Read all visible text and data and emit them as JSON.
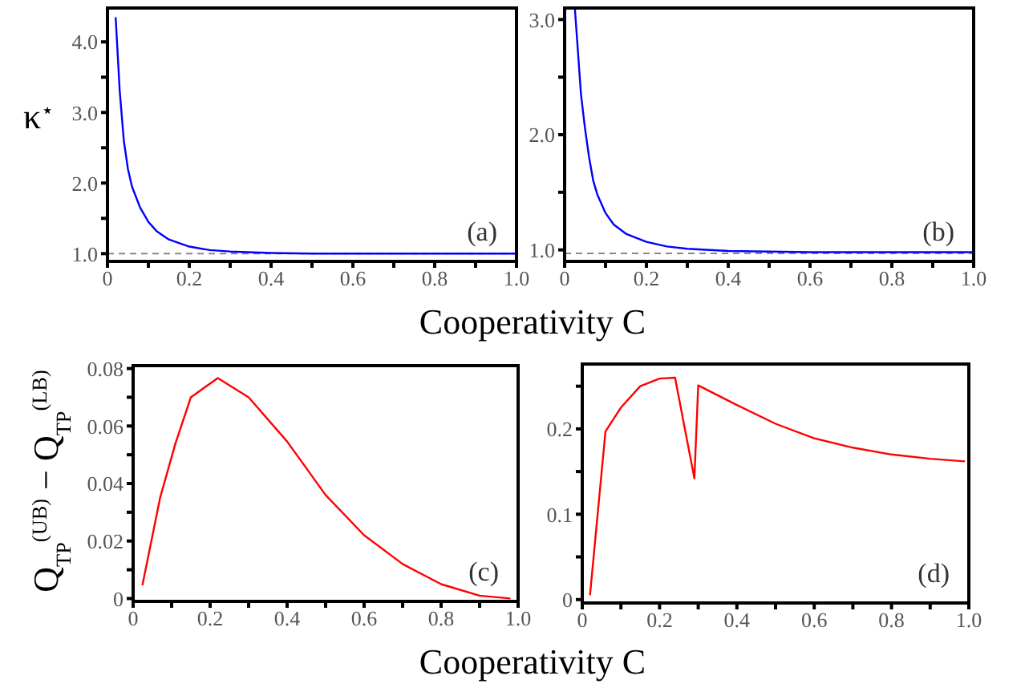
{
  "chart_data": [
    {
      "type": "line",
      "ylabel": "κ$^{⋆}$",
      "xlabel": "Cooperativity C",
      "annotations": [
        "(a)"
      ],
      "grid": false,
      "legend": false,
      "line_style": "solid",
      "marker": "none",
      "xlim": [
        0,
        1
      ],
      "xticks": [
        {
          "value": 0,
          "label": "0"
        },
        {
          "value": 0.1,
          "label": null
        },
        {
          "value": 0.2,
          "label": "0.2"
        },
        {
          "value": 0.3,
          "label": null
        },
        {
          "value": 0.4,
          "label": "0.4"
        },
        {
          "value": 0.5,
          "label": null
        },
        {
          "value": 0.6,
          "label": "0.6"
        },
        {
          "value": 0.7,
          "label": null
        },
        {
          "value": 0.8,
          "label": "0.8"
        },
        {
          "value": 0.9,
          "label": null
        },
        {
          "value": 1,
          "label": "1.0"
        }
      ],
      "ylim": [
        0.89,
        4.48
      ],
      "yticks": [
        {
          "value": 1,
          "label": "1.0"
        },
        {
          "value": 1.5,
          "label": null
        },
        {
          "value": 2,
          "label": "2.0"
        },
        {
          "value": 2.5,
          "label": null
        },
        {
          "value": 3,
          "label": "3.0"
        },
        {
          "value": 3.5,
          "label": null
        },
        {
          "value": 4,
          "label": "4.0"
        }
      ],
      "ref_lines": [
        {
          "axis": "y",
          "value": 1,
          "color": "#888888",
          "line_style": "dashed"
        }
      ],
      "series": [
        {
          "color": "#0000ff",
          "x": [
            0.02,
            0.03,
            0.04,
            0.05,
            0.06,
            0.08,
            0.1,
            0.12,
            0.15,
            0.2,
            0.25,
            0.3,
            0.4,
            0.5,
            0.7,
            1.0
          ],
          "values": [
            4.35,
            3.3,
            2.6,
            2.2,
            1.95,
            1.65,
            1.45,
            1.32,
            1.2,
            1.1,
            1.05,
            1.03,
            1.01,
            1.0,
            1.0,
            1.0
          ]
        }
      ]
    },
    {
      "type": "line",
      "annotations": [
        "(b)"
      ],
      "grid": false,
      "legend": false,
      "line_style": "solid",
      "marker": "none",
      "xlim": [
        0,
        1
      ],
      "xticks": [
        {
          "value": 0,
          "label": "0"
        },
        {
          "value": 0.1,
          "label": null
        },
        {
          "value": 0.2,
          "label": "0.2"
        },
        {
          "value": 0.3,
          "label": null
        },
        {
          "value": 0.4,
          "label": "0.4"
        },
        {
          "value": 0.5,
          "label": null
        },
        {
          "value": 0.6,
          "label": "0.6"
        },
        {
          "value": 0.7,
          "label": null
        },
        {
          "value": 0.8,
          "label": "0.8"
        },
        {
          "value": 0.9,
          "label": null
        },
        {
          "value": 1,
          "label": "1.0"
        }
      ],
      "ylim": [
        0.9,
        3.1
      ],
      "yticks": [
        {
          "value": 1,
          "label": "1.0"
        },
        {
          "value": 1.5,
          "label": null
        },
        {
          "value": 2,
          "label": "2.0"
        },
        {
          "value": 2.5,
          "label": null
        },
        {
          "value": 3,
          "label": "3.0"
        }
      ],
      "ref_lines": [
        {
          "axis": "y",
          "value": 0.97,
          "color": "#888888",
          "line_style": "dashed"
        }
      ],
      "series": [
        {
          "color": "#0000ff",
          "x": [
            0.025,
            0.03,
            0.04,
            0.05,
            0.06,
            0.07,
            0.08,
            0.1,
            0.12,
            0.15,
            0.2,
            0.25,
            0.3,
            0.4,
            0.6,
            1.0
          ],
          "values": [
            3.1,
            2.85,
            2.35,
            2.05,
            1.8,
            1.6,
            1.48,
            1.32,
            1.22,
            1.14,
            1.07,
            1.03,
            1.01,
            0.99,
            0.98,
            0.98
          ]
        }
      ]
    },
    {
      "type": "line",
      "ylabel": "Q$_{TP}$$^{(UB)}$ − Q$_{TP}$$^{(LB)}$",
      "xlabel": "Cooperativity C",
      "annotations": [
        "(c)"
      ],
      "grid": false,
      "legend": false,
      "line_style": "solid",
      "marker": "none",
      "xlim": [
        0,
        1
      ],
      "xticks": [
        {
          "value": 0,
          "label": "0"
        },
        {
          "value": 0.1,
          "label": null
        },
        {
          "value": 0.2,
          "label": "0.2"
        },
        {
          "value": 0.3,
          "label": null
        },
        {
          "value": 0.4,
          "label": "0.4"
        },
        {
          "value": 0.5,
          "label": null
        },
        {
          "value": 0.6,
          "label": "0.6"
        },
        {
          "value": 0.7,
          "label": null
        },
        {
          "value": 0.8,
          "label": "0.8"
        },
        {
          "value": 0.9,
          "label": null
        },
        {
          "value": 1,
          "label": "1.0"
        }
      ],
      "ylim": [
        -0.001,
        0.081
      ],
      "yticks": [
        {
          "value": 0,
          "label": "0"
        },
        {
          "value": 0.01,
          "label": null
        },
        0.02,
        {
          "value": 0.03,
          "label": null
        },
        0.04,
        {
          "value": 0.05,
          "label": null
        },
        0.06,
        {
          "value": 0.07,
          "label": null
        },
        0.08
      ],
      "series": [
        {
          "color": "#ff0000",
          "x": [
            0.024,
            0.07,
            0.11,
            0.15,
            0.22,
            0.3,
            0.4,
            0.5,
            0.6,
            0.7,
            0.8,
            0.9,
            0.98
          ],
          "values": [
            0.0046,
            0.035,
            0.054,
            0.07,
            0.0767,
            0.07,
            0.0546,
            0.036,
            0.022,
            0.012,
            0.005,
            0.001,
            0
          ]
        }
      ]
    },
    {
      "type": "line",
      "annotations": [
        "(d)"
      ],
      "grid": false,
      "legend": false,
      "line_style": "solid",
      "marker": "none",
      "xlim": [
        0,
        1
      ],
      "xticks": [
        {
          "value": 0,
          "label": "0"
        },
        {
          "value": 0.1,
          "label": null
        },
        {
          "value": 0.2,
          "label": "0.2"
        },
        {
          "value": 0.3,
          "label": null
        },
        {
          "value": 0.4,
          "label": "0.4"
        },
        {
          "value": 0.5,
          "label": null
        },
        {
          "value": 0.6,
          "label": "0.6"
        },
        {
          "value": 0.7,
          "label": null
        },
        {
          "value": 0.8,
          "label": "0.8"
        },
        {
          "value": 0.9,
          "label": null
        },
        {
          "value": 1,
          "label": "1.0"
        }
      ],
      "ylim": [
        -0.004,
        0.276
      ],
      "yticks": [
        {
          "value": 0,
          "label": "0"
        },
        {
          "value": 0.05,
          "label": null
        },
        0.1,
        {
          "value": 0.15,
          "label": null
        },
        0.2,
        {
          "value": 0.25,
          "label": null
        }
      ],
      "series": [
        {
          "color": "#ff0000",
          "x": [
            0.02,
            0.06,
            0.1,
            0.15,
            0.2,
            0.24,
            0.29,
            0.3,
            0.4,
            0.5,
            0.6,
            0.7,
            0.8,
            0.9,
            0.99
          ],
          "values": [
            0.005,
            0.197,
            0.225,
            0.25,
            0.259,
            0.26,
            0.142,
            0.251,
            0.228,
            0.206,
            0.189,
            0.178,
            0.17,
            0.165,
            0.162
          ]
        }
      ]
    }
  ]
}
